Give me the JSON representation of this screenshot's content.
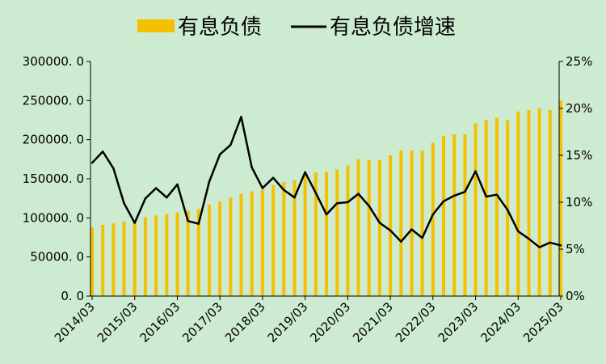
{
  "chart_data": {
    "type": "bar+line",
    "background": "#cdebd0",
    "legend": {
      "position": "top",
      "items": [
        {
          "label": "有息负债",
          "kind": "bar",
          "color": "#f5c000"
        },
        {
          "label": "有息负债增速",
          "kind": "line",
          "color": "#000000"
        }
      ]
    },
    "left_axis": {
      "ylim": [
        0,
        300000
      ],
      "ticks": [
        0,
        50000,
        100000,
        150000,
        200000,
        250000,
        300000
      ],
      "tick_labels": [
        "0. 0",
        "50000. 0",
        "100000. 0",
        "150000. 0",
        "200000. 0",
        "250000. 0",
        "300000. 0"
      ]
    },
    "right_axis": {
      "ylim": [
        0,
        25
      ],
      "unit": "%",
      "ticks": [
        0,
        5,
        10,
        15,
        20,
        25
      ],
      "tick_labels": [
        "0%",
        "5%",
        "10%",
        "15%",
        "20%",
        "25%"
      ]
    },
    "x_tick_labels": [
      "2014/03",
      "2015/03",
      "2016/03",
      "2017/03",
      "2018/03",
      "2019/03",
      "2020/03",
      "2021/03",
      "2022/03",
      "2023/03",
      "2024/03",
      "2025/03"
    ],
    "x_tick_every": 4,
    "grid": false,
    "categories": [
      "2014/03",
      "2014/06",
      "2014/09",
      "2014/12",
      "2015/03",
      "2015/06",
      "2015/09",
      "2015/12",
      "2016/03",
      "2016/06",
      "2016/09",
      "2016/12",
      "2017/03",
      "2017/06",
      "2017/09",
      "2017/12",
      "2018/03",
      "2018/06",
      "2018/09",
      "2018/12",
      "2019/03",
      "2019/06",
      "2019/09",
      "2019/12",
      "2020/03",
      "2020/06",
      "2020/09",
      "2020/12",
      "2021/03",
      "2021/06",
      "2021/09",
      "2021/12",
      "2022/03",
      "2022/06",
      "2022/09",
      "2022/12",
      "2023/03",
      "2023/06",
      "2023/09",
      "2023/12",
      "2024/03",
      "2024/06",
      "2024/09",
      "2024/12",
      "2025/03"
    ],
    "series": [
      {
        "name": "有息负债",
        "type": "bar",
        "axis": "left",
        "color": "#f5c000",
        "values": [
          88000,
          91000,
          93000,
          95000,
          96000,
          101000,
          103000,
          105000,
          107000,
          109000,
          111000,
          117000,
          121000,
          126000,
          131000,
          134000,
          136000,
          142000,
          146000,
          148000,
          155000,
          158000,
          159000,
          162000,
          167000,
          175000,
          174000,
          174000,
          180000,
          186000,
          186000,
          186000,
          196000,
          205000,
          207000,
          207000,
          221000,
          225000,
          228000,
          225000,
          236000,
          238000,
          240000,
          238000,
          250000
        ]
      },
      {
        "name": "有息负债增速",
        "type": "line",
        "axis": "right",
        "color": "#000000",
        "values": [
          14.2,
          15.4,
          13.6,
          9.9,
          7.8,
          10.4,
          11.5,
          10.5,
          11.9,
          8.0,
          7.7,
          12.2,
          15.1,
          16.1,
          19.1,
          13.7,
          11.5,
          12.6,
          11.3,
          10.5,
          13.2,
          11.0,
          8.7,
          9.9,
          10.0,
          10.9,
          9.6,
          7.8,
          7.0,
          5.8,
          7.1,
          6.2,
          8.7,
          10.1,
          10.7,
          11.1,
          13.3,
          10.6,
          10.8,
          9.2,
          6.9,
          6.1,
          5.2,
          5.7,
          5.4
        ]
      }
    ]
  }
}
